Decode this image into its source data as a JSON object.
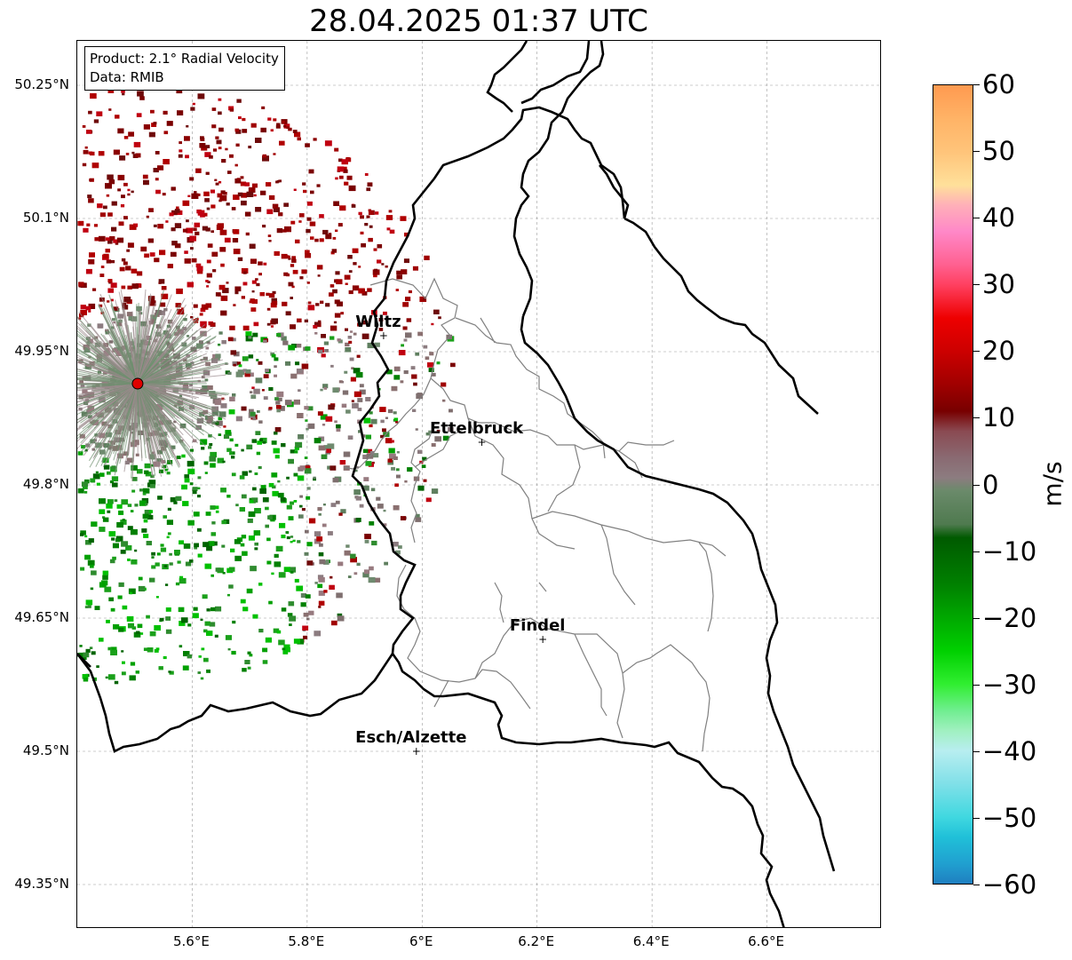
{
  "title": "28.04.2025 01:37 UTC",
  "info": {
    "product": "Product: 2.1° Radial Velocity",
    "data": "Data: RMIB"
  },
  "axes": {
    "x_ticks": [
      "5.6°E",
      "5.8°E",
      "6°E",
      "6.2°E",
      "6.4°E",
      "6.6°E"
    ],
    "y_ticks": [
      "50.25°N",
      "50.1°N",
      "49.95°N",
      "49.8°N",
      "49.65°N",
      "49.5°N",
      "49.35°N"
    ],
    "lon_range": [
      5.4,
      6.8
    ],
    "lat_range": [
      49.3,
      50.3
    ]
  },
  "cities": [
    {
      "name": "Wiltz",
      "lon": 5.933,
      "lat": 49.968
    },
    {
      "name": "Ettelbruck",
      "lon": 6.104,
      "lat": 49.848
    },
    {
      "name": "Findel",
      "lon": 6.21,
      "lat": 49.626
    },
    {
      "name": "Esch/Alzette",
      "lon": 5.99,
      "lat": 49.5
    }
  ],
  "radar_site": {
    "lon": 5.505,
    "lat": 49.914,
    "color": "#e00000"
  },
  "colorbar": {
    "label": "m/s",
    "ticks": [
      "60",
      "50",
      "40",
      "30",
      "20",
      "10",
      "0",
      "−10",
      "−20",
      "−30",
      "−40",
      "−50",
      "−60"
    ],
    "range": [
      -60,
      60
    ]
  }
}
